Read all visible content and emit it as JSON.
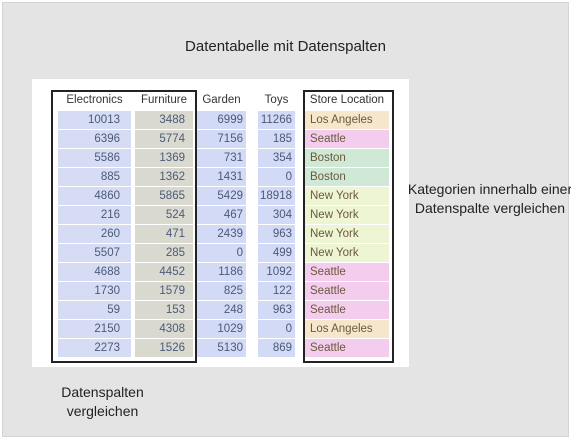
{
  "title": "Datentabelle mit Datenspalten",
  "side_note": "Kategorien innerhalb einer Datenspalte vergleichen",
  "bottom_note": "Datenspalten vergleichen",
  "colors": {
    "los_angeles": "#f6e6cc",
    "seattle": "#f4ccee",
    "boston": "#d0e8d6",
    "new_york": "#eef5d4",
    "numeric_blue": "#d5dcf3",
    "furniture_gray": "#d9d9cf"
  },
  "table": {
    "headers": {
      "electronics": "Electronics",
      "furniture": "Furniture",
      "garden": "Garden",
      "toys": "Toys",
      "store": "Store Location"
    },
    "rows": [
      {
        "electronics": "10013",
        "furniture": "3488",
        "garden": "6999",
        "toys": "11266",
        "store": "Los Angeles"
      },
      {
        "electronics": "6396",
        "furniture": "5774",
        "garden": "7156",
        "toys": "185",
        "store": "Seattle"
      },
      {
        "electronics": "5586",
        "furniture": "1369",
        "garden": "731",
        "toys": "354",
        "store": "Boston"
      },
      {
        "electronics": "885",
        "furniture": "1362",
        "garden": "1431",
        "toys": "0",
        "store": "Boston"
      },
      {
        "electronics": "4860",
        "furniture": "5865",
        "garden": "5429",
        "toys": "18918",
        "store": "New York"
      },
      {
        "electronics": "216",
        "furniture": "524",
        "garden": "467",
        "toys": "304",
        "store": "New York"
      },
      {
        "electronics": "260",
        "furniture": "471",
        "garden": "2439",
        "toys": "963",
        "store": "New York"
      },
      {
        "electronics": "5507",
        "furniture": "285",
        "garden": "0",
        "toys": "499",
        "store": "New York"
      },
      {
        "electronics": "4688",
        "furniture": "4452",
        "garden": "1186",
        "toys": "1092",
        "store": "Seattle"
      },
      {
        "electronics": "1730",
        "furniture": "1579",
        "garden": "825",
        "toys": "122",
        "store": "Seattle"
      },
      {
        "electronics": "59",
        "furniture": "153",
        "garden": "248",
        "toys": "963",
        "store": "Seattle"
      },
      {
        "electronics": "2150",
        "furniture": "4308",
        "garden": "1029",
        "toys": "0",
        "store": "Los Angeles"
      },
      {
        "electronics": "2273",
        "furniture": "1526",
        "garden": "5130",
        "toys": "869",
        "store": "Seattle"
      }
    ]
  }
}
